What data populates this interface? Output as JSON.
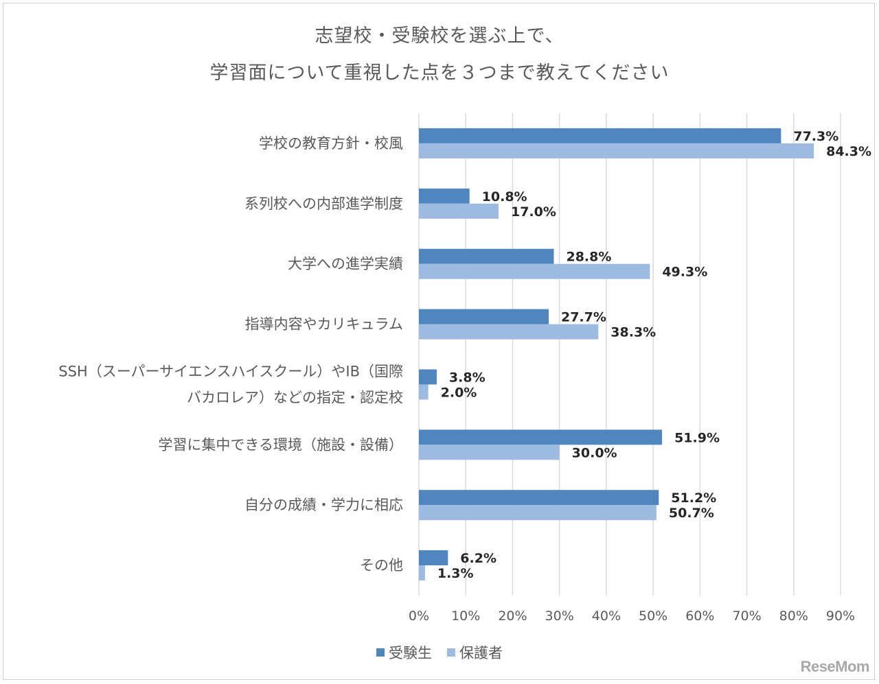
{
  "title": {
    "line1": "志望校・受験校を選ぶ上で、",
    "line2": "学習面について重視した点を３つまで教えてください"
  },
  "legend": {
    "series1": "受験生",
    "series2": "保護者"
  },
  "colors": {
    "series1": "#4f86be",
    "series2": "#9dbbe1",
    "grid": "#d9d9d9",
    "axis_text": "#595959",
    "label_text": "#262626"
  },
  "watermark": "ReseMom",
  "chart_data": {
    "type": "bar",
    "orientation": "horizontal",
    "title": "志望校・受験校を選ぶ上で、学習面について重視した点を３つまで教えてください",
    "categories": [
      [
        "学校の教育方針・校風"
      ],
      [
        "系列校への内部進学制度"
      ],
      [
        "大学への進学実績"
      ],
      [
        "指導内容やカリキュラム"
      ],
      [
        "SSH（スーパーサイエンスハイスクール）やIB（国際",
        "バカロレア）などの指定・認定校"
      ],
      [
        "学習に集中できる環境（施設・設備）"
      ],
      [
        "自分の成績・学力に相応"
      ],
      [
        "その他"
      ]
    ],
    "series": [
      {
        "name": "受験生",
        "values": [
          77.3,
          10.8,
          28.8,
          27.7,
          3.8,
          51.9,
          51.2,
          6.2
        ],
        "labels": [
          "77.3%",
          "10.8%",
          "28.8%",
          "27.7%",
          "3.8%",
          "51.9%",
          "51.2%",
          "6.2%"
        ]
      },
      {
        "name": "保護者",
        "values": [
          84.3,
          17.0,
          49.3,
          38.3,
          2.0,
          30.0,
          50.7,
          1.3
        ],
        "labels": [
          "84.3%",
          "17.0%",
          "49.3%",
          "38.3%",
          "2.0%",
          "30.0%",
          "50.7%",
          "1.3%"
        ]
      }
    ],
    "xlim": [
      0,
      90
    ],
    "xticks": [
      0,
      10,
      20,
      30,
      40,
      50,
      60,
      70,
      80,
      90
    ],
    "xtick_labels": [
      "0%",
      "10%",
      "20%",
      "30%",
      "40%",
      "50%",
      "60%",
      "70%",
      "80%",
      "90%"
    ],
    "grid": true,
    "legend_position": "bottom-center"
  }
}
